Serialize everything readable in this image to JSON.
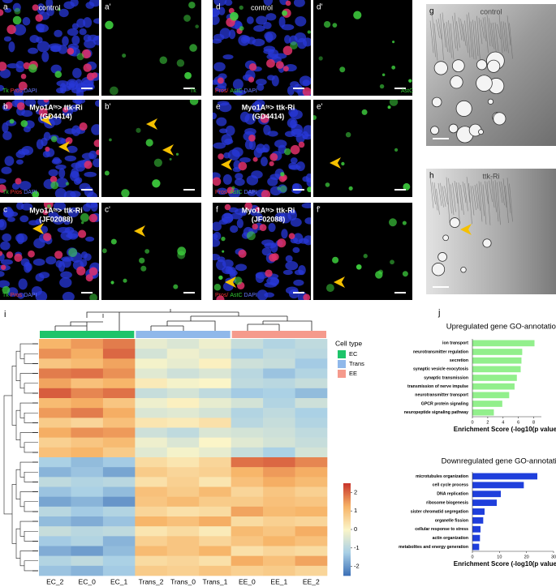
{
  "panels": [
    {
      "letter": "a",
      "title": [
        "control"
      ],
      "stains": [
        {
          "text": "Tk",
          "color": "#33cc33"
        },
        {
          "text": "Pros",
          "color": "#ee3333"
        },
        {
          "text": "DAPI",
          "color": "#6677ff"
        }
      ]
    },
    {
      "letter": "a'",
      "title": [],
      "stains": [
        {
          "text": "Tk",
          "color": "#33cc33"
        }
      ]
    },
    {
      "letter": "b",
      "title": [
        "Myo1Aᵗˢ> ttk-Ri",
        "(GD4414)"
      ],
      "stains": [
        {
          "text": "Tk",
          "color": "#33cc33"
        },
        {
          "text": "Pros",
          "color": "#ee3333"
        },
        {
          "text": "DAPI",
          "color": "#6677ff"
        }
      ]
    },
    {
      "letter": "b'",
      "title": [],
      "stains": []
    },
    {
      "letter": "c",
      "title": [
        "Myo1Aᵗˢ> ttk-Ri",
        "(JF02088)"
      ],
      "stains": [
        {
          "text": "Tk",
          "color": "#33cc33"
        },
        {
          "text": "Pros",
          "color": "#ee3333"
        },
        {
          "text": "DAPI",
          "color": "#6677ff"
        }
      ]
    },
    {
      "letter": "c'",
      "title": [],
      "stains": []
    },
    {
      "letter": "d",
      "title": [
        "control"
      ],
      "stains": [
        {
          "text": "Pros/",
          "color": "#ee3333"
        },
        {
          "text": "AstC",
          "color": "#33cc33"
        },
        {
          "text": "DAPI",
          "color": "#6677ff"
        }
      ]
    },
    {
      "letter": "d'",
      "title": [],
      "stains": [
        {
          "text": "AstC",
          "color": "#33cc33"
        }
      ]
    },
    {
      "letter": "e",
      "title": [
        "Myo1Aᵗˢ> ttk-Ri",
        "(GD4414)"
      ],
      "stains": [
        {
          "text": "Pros/",
          "color": "#ee3333"
        },
        {
          "text": "AstC",
          "color": "#33cc33"
        },
        {
          "text": "DAPI",
          "color": "#6677ff"
        }
      ]
    },
    {
      "letter": "e'",
      "title": [],
      "stains": []
    },
    {
      "letter": "f",
      "title": [
        "Myo1Aᵗˢ> ttk-Ri",
        "(JF02088)"
      ],
      "stains": [
        {
          "text": "Pros/",
          "color": "#ee3333"
        },
        {
          "text": "AstC",
          "color": "#33cc33"
        },
        {
          "text": "DAPI",
          "color": "#6677ff"
        }
      ]
    },
    {
      "letter": "f'",
      "title": [],
      "stains": []
    },
    {
      "letter": "g",
      "title": [
        "control"
      ],
      "stains": []
    },
    {
      "letter": "h",
      "title": [
        "ttk-Ri"
      ],
      "stains": []
    }
  ],
  "chart_data": [
    {
      "type": "heatmap",
      "label": "i",
      "categories": [
        "EC_2",
        "EC_0",
        "EC_1",
        "Trans_2",
        "Trans_0",
        "Trans_1",
        "EE_0",
        "EE_1",
        "EE_2"
      ],
      "legend_title": "Cell type",
      "groups": [
        {
          "name": "EC",
          "color": "#1ec46a",
          "span": 3
        },
        {
          "name": "Trans",
          "color": "#8fb8ea",
          "span": 3
        },
        {
          "name": "EE",
          "color": "#f59a8c",
          "span": 3
        }
      ],
      "colormap": [
        "#3b6fb6",
        "#a8cfe6",
        "#fbf5c8",
        "#f7b366",
        "#c8352b"
      ],
      "zlim": [
        -2.5,
        2.5
      ],
      "zticks": [
        -2,
        -1,
        0,
        1,
        2
      ],
      "values": [
        [
          1.2,
          1.5,
          1.8,
          -0.3,
          -0.5,
          -0.2,
          -0.8,
          -1.1,
          -0.9
        ],
        [
          1.6,
          1.3,
          2.0,
          -0.6,
          -0.2,
          -0.4,
          -1.2,
          -0.9,
          -1.0
        ],
        [
          0.9,
          1.1,
          1.4,
          -0.1,
          -0.3,
          0.1,
          -0.7,
          -0.8,
          -1.3
        ],
        [
          1.8,
          1.9,
          1.6,
          -0.4,
          -0.7,
          -0.5,
          -1.0,
          -1.4,
          -1.1
        ],
        [
          1.4,
          1.0,
          1.2,
          0.2,
          -0.1,
          0.0,
          -0.9,
          -1.0,
          -0.8
        ],
        [
          2.1,
          1.7,
          1.9,
          -0.8,
          -0.6,
          -0.9,
          -1.3,
          -1.2,
          -1.5
        ],
        [
          1.1,
          1.3,
          0.9,
          -0.2,
          0.1,
          -0.3,
          -0.6,
          -1.1,
          -0.7
        ],
        [
          1.5,
          1.8,
          1.3,
          -0.5,
          -0.4,
          -0.6,
          -1.1,
          -0.9,
          -1.2
        ],
        [
          0.8,
          0.6,
          1.0,
          0.3,
          0.2,
          0.4,
          -1.0,
          -0.8,
          -1.1
        ],
        [
          1.3,
          1.6,
          1.5,
          -0.7,
          -0.9,
          -0.5,
          -0.6,
          -0.7,
          -0.9
        ],
        [
          0.7,
          0.9,
          1.1,
          -0.2,
          -0.5,
          0.0,
          -0.4,
          -0.6,
          -0.8
        ],
        [
          1.0,
          1.2,
          0.8,
          -0.4,
          -0.1,
          -0.3,
          -0.8,
          -1.2,
          -0.6
        ],
        [
          -1.2,
          -1.5,
          -1.3,
          0.5,
          0.3,
          0.6,
          1.9,
          2.0,
          1.7
        ],
        [
          -1.6,
          -1.4,
          -1.8,
          0.8,
          0.6,
          0.7,
          1.2,
          1.5,
          1.3
        ],
        [
          -0.9,
          -1.1,
          -1.0,
          0.4,
          0.7,
          0.3,
          1.0,
          1.3,
          1.1
        ],
        [
          -1.4,
          -1.2,
          -1.5,
          1.0,
          0.8,
          1.1,
          0.6,
          0.9,
          0.7
        ],
        [
          -1.8,
          -1.6,
          -2.0,
          0.9,
          1.1,
          0.8,
          0.8,
          1.0,
          0.9
        ],
        [
          -1.0,
          -1.3,
          -1.1,
          0.6,
          0.4,
          0.5,
          1.4,
          1.1,
          1.2
        ],
        [
          -1.5,
          -1.7,
          -1.4,
          1.2,
          1.0,
          1.3,
          0.5,
          0.7,
          0.6
        ],
        [
          -0.8,
          -1.0,
          -0.9,
          0.3,
          0.5,
          0.2,
          1.1,
          0.9,
          1.3
        ],
        [
          -1.3,
          -1.1,
          -1.6,
          0.7,
          0.9,
          0.6,
          0.9,
          1.2,
          1.0
        ],
        [
          -1.7,
          -1.9,
          -1.5,
          1.1,
          0.9,
          1.2,
          0.4,
          0.6,
          0.5
        ],
        [
          -1.1,
          -0.9,
          -1.2,
          0.5,
          0.6,
          0.4,
          1.3,
          1.0,
          1.4
        ],
        [
          -1.4,
          -1.6,
          -1.3,
          0.8,
          0.7,
          0.9,
          0.7,
          0.8,
          0.6
        ]
      ]
    },
    {
      "type": "bar",
      "label": "j",
      "title": "Upregulated gene GO-annotation",
      "categories": [
        "ion transport",
        "neurotransmitter regulation",
        "secretion",
        "synaptic vesicle exocytosis",
        "synaptic transmission",
        "transmission of nerve impulse",
        "neurotransmitter transport",
        "GPCR protein signaling",
        "neuropeptide signaling pathway"
      ],
      "values": [
        8.1,
        6.5,
        6.4,
        6.3,
        5.8,
        5.5,
        4.8,
        3.9,
        2.8
      ],
      "color": "#92ef8c",
      "xlim": [
        0,
        9
      ],
      "xticks": [
        0,
        2,
        4,
        6,
        8
      ],
      "xlabel": "Enrichment Score (-log10(p value))"
    },
    {
      "type": "bar",
      "title": "Downregulated gene GO-annotation",
      "categories": [
        "microtubules organization",
        "cell cycle process",
        "DNA replication",
        "ribosome biogenesis",
        "sister chromatid segregation",
        "organelle fission",
        "cellular response to stress",
        "actin organization",
        "metabolites and energy generation"
      ],
      "values": [
        24,
        19,
        10.5,
        9,
        4.5,
        4,
        3,
        2.8,
        2.5
      ],
      "color": "#1f3fdc",
      "xlim": [
        0,
        30
      ],
      "xticks": [
        0,
        10,
        20,
        30
      ],
      "xlabel": "Enrichment Score (-log10(p value))"
    }
  ]
}
